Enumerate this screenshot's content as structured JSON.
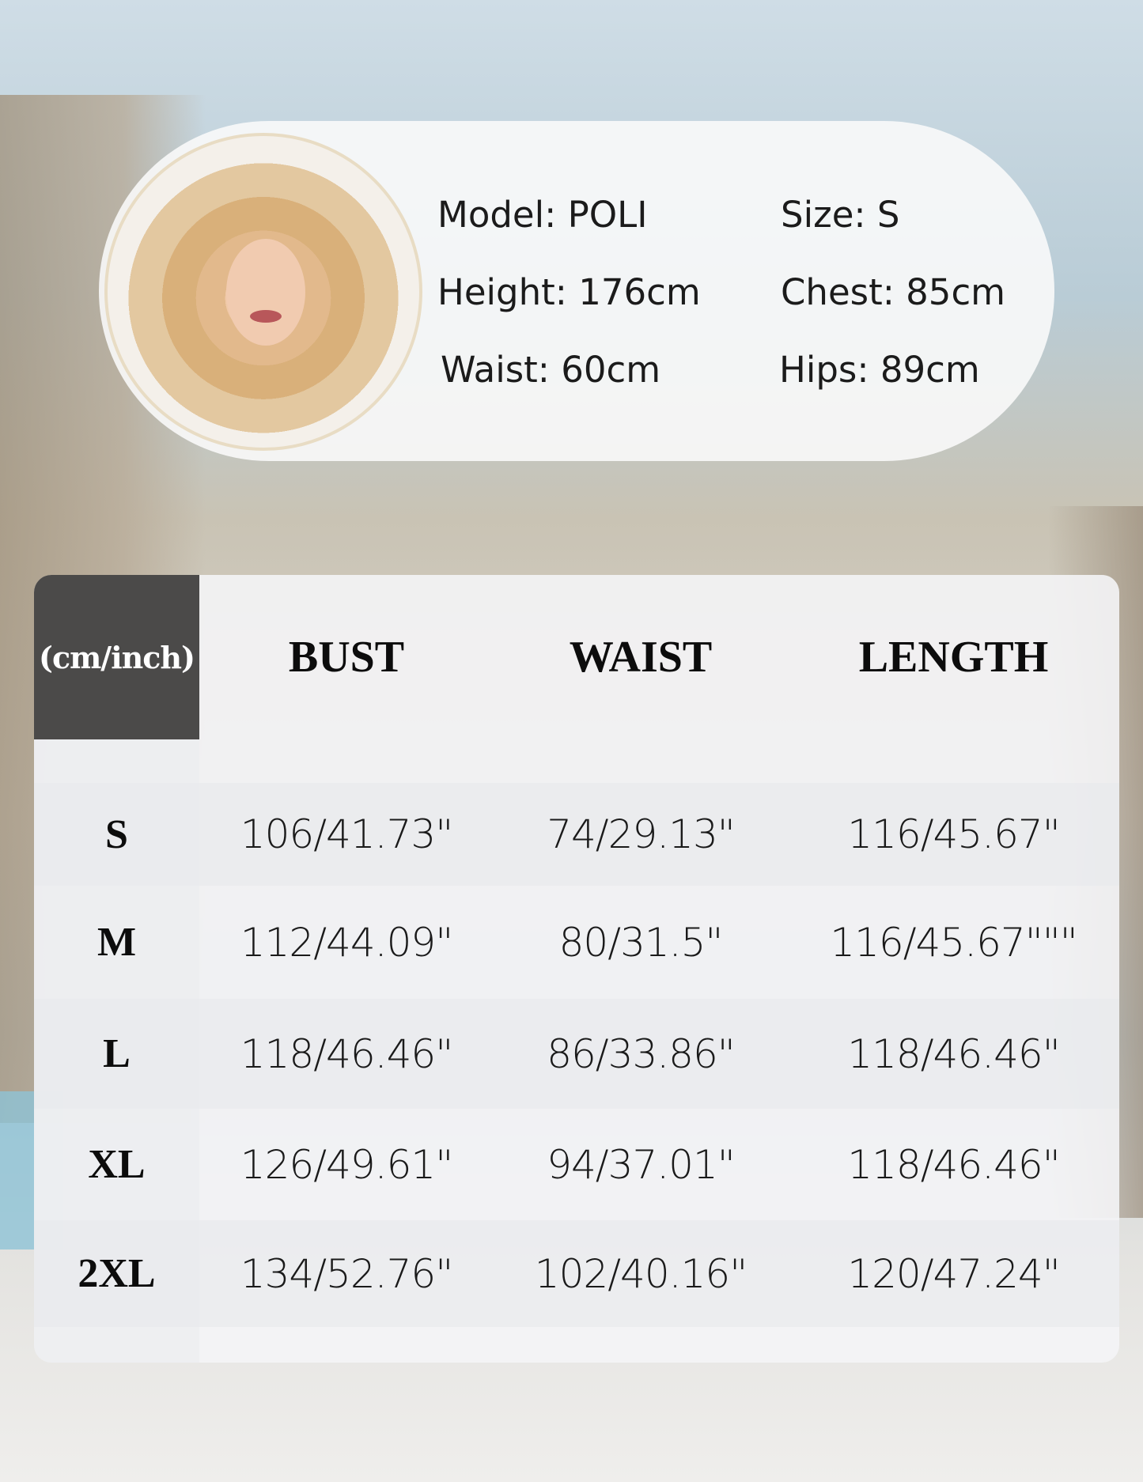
{
  "model_info": {
    "model": "Model: POLI",
    "size": "Size: S",
    "height": "Height: 176cm",
    "chest": "Chest: 85cm",
    "waist": "Waist: 60cm",
    "hips": "Hips: 89cm"
  },
  "table": {
    "unit_label": "(cm/inch)",
    "headers": [
      "BUST",
      "WAIST",
      "LENGTH"
    ],
    "rows": [
      {
        "size": "S",
        "bust": "106/41.73\"",
        "waist": "74/29.13\"",
        "length": "116/45.67\""
      },
      {
        "size": "M",
        "bust": "112/44.09\"",
        "waist": "80/31.5\"",
        "length": "116/45.67\"\"\""
      },
      {
        "size": "L",
        "bust": "118/46.46\"",
        "waist": "86/33.86\"",
        "length": "118/46.46\""
      },
      {
        "size": "XL",
        "bust": "126/49.61\"",
        "waist": "94/37.01\"",
        "length": "118/46.46\""
      },
      {
        "size": "2XL",
        "bust": "134/52.76\"",
        "waist": "102/40.16\"",
        "length": "120/47.24\""
      }
    ]
  },
  "colors": {
    "header_dark": "#4b4a49",
    "text": "#0c0c0c"
  }
}
